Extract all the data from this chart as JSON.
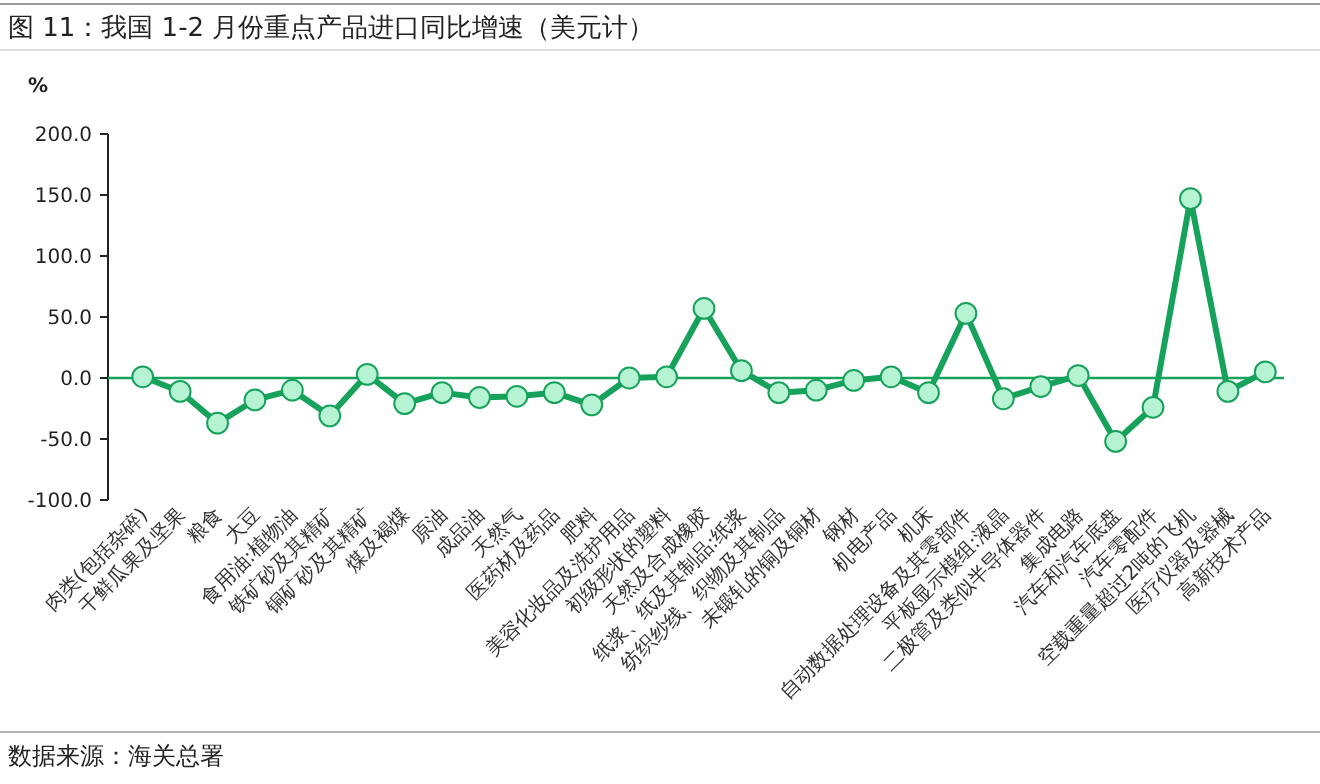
{
  "chart_data": {
    "type": "line",
    "title": "图 11：我国 1-2 月份重点产品进口同比增速（美元计）",
    "ylabel": "%",
    "categories": [
      "肉类(包括杂碎)",
      "干鲜瓜果及坚果",
      "粮食",
      "大豆",
      "食用油:植物油",
      "铁矿砂及其精矿",
      "铜矿砂及其精矿",
      "煤及褐煤",
      "原油",
      "成品油",
      "天然气",
      "医药材及药品",
      "肥料",
      "美容化妆品及洗护用品",
      "初级形状的塑料",
      "天然及合成橡胶",
      "纸浆、纸及其制品:纸浆",
      "纺织纱线、织物及其制品",
      "未锻轧的铜及铜材",
      "钢材",
      "机电产品",
      "机床",
      "自动数据处理设备及其零部件",
      "平板显示模组:液晶",
      "二极管及类似半导体器件",
      "集成电路",
      "汽车和汽车底盘",
      "汽车零配件",
      "空载重量超过2吨的飞机",
      "医疗仪器及器械",
      "高新技术产品"
    ],
    "series": [
      {
        "color": "#17a25c",
        "values": [
          1,
          -11,
          -37,
          -18,
          -10,
          -31,
          3,
          -21,
          -12,
          -16,
          -15,
          -12,
          -22,
          0,
          1,
          57,
          6,
          -12,
          -10,
          -2,
          1,
          -12,
          53,
          -17,
          -7,
          2,
          -52,
          -24,
          147,
          -11,
          5
        ]
      }
    ],
    "ylim": [
      -100,
      200
    ],
    "yticks": [
      {
        "value": -100,
        "label": "-100.0"
      },
      {
        "value": -50,
        "label": "-50.0"
      },
      {
        "value": 0,
        "label": "0.0"
      },
      {
        "value": 50,
        "label": "50.0"
      },
      {
        "value": 100,
        "label": "100.0"
      },
      {
        "value": 150,
        "label": "150.0"
      },
      {
        "value": 200,
        "label": "200.0"
      }
    ],
    "ref_lines": [
      {
        "axis": "y",
        "value": 0,
        "color": "#17a25c"
      }
    ],
    "marker": "circle",
    "line_style": "solid",
    "annotations": [
      "数据来源：海关总署"
    ]
  }
}
